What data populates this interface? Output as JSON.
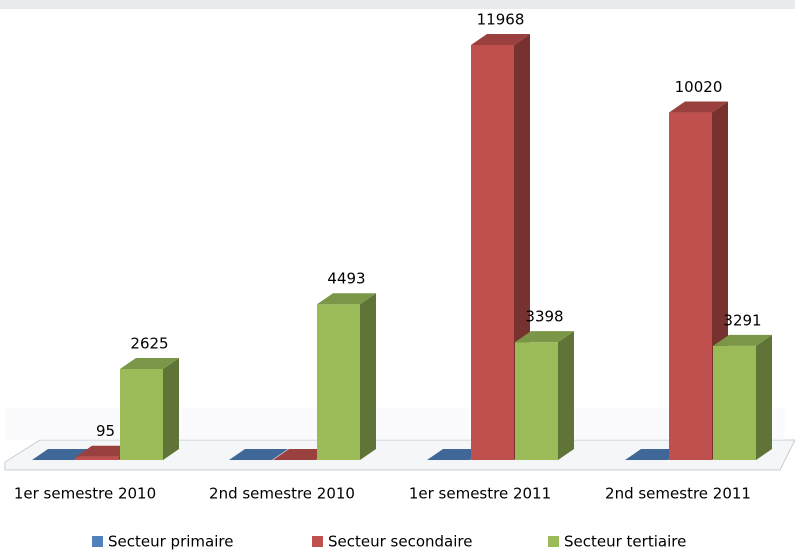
{
  "chart_data": {
    "type": "bar3d",
    "categories": [
      "1er semestre 2010",
      "2nd semestre 2010",
      "1er semestre 2011",
      "2nd semestre 2011"
    ],
    "series": [
      {
        "name": "Secteur primaire",
        "color": "#4f81bd",
        "values": [
          0,
          0,
          0,
          0
        ],
        "value_labels": [
          null,
          null,
          null,
          null
        ]
      },
      {
        "name": "Secteur secondaire",
        "color": "#c0504d",
        "values": [
          95,
          0,
          11968,
          10020
        ],
        "value_labels": [
          "95",
          null,
          "11968",
          "10020"
        ]
      },
      {
        "name": "Secteur tertiaire",
        "color": "#9bbb59",
        "values": [
          2625,
          4493,
          3398,
          3291
        ],
        "value_labels": [
          "2625",
          "4493",
          "3398",
          "3291"
        ]
      }
    ]
  }
}
